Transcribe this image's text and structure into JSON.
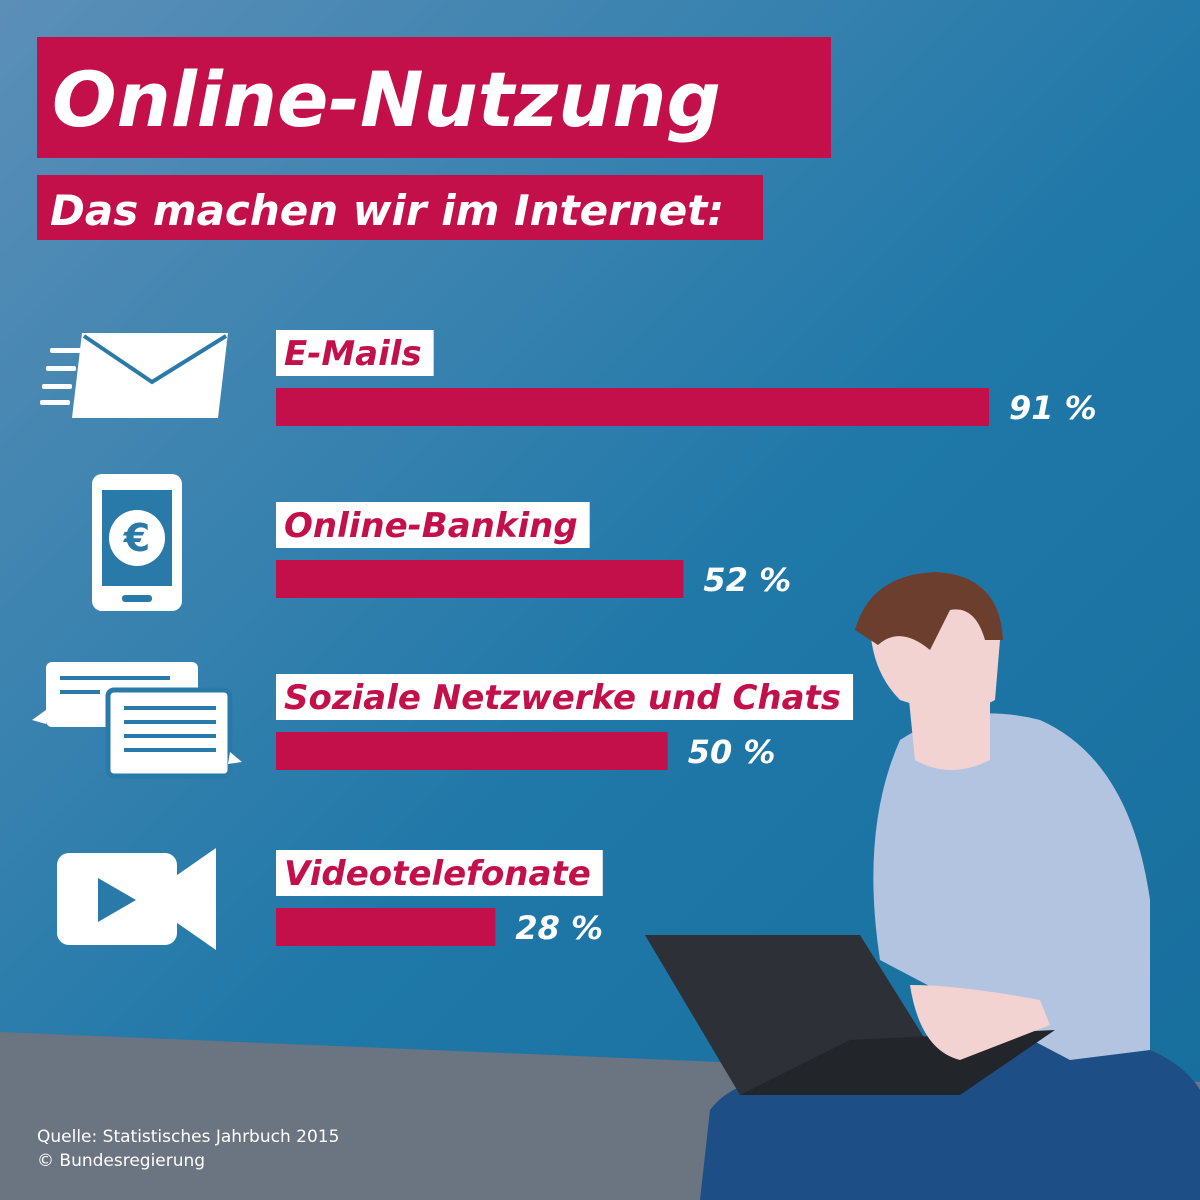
{
  "chart_data": {
    "type": "bar",
    "orientation": "horizontal",
    "title": "Online-Nutzung",
    "subtitle": "Das machen wir im Internet:",
    "categories": [
      "E-Mails",
      "Online-Banking",
      "Soziale Netzwerke und Chats",
      "Videotelefonate"
    ],
    "values": [
      91,
      52,
      50,
      28
    ],
    "value_labels": [
      "91 %",
      "52 %",
      "50 %",
      "28 %"
    ],
    "color": "#c4104a",
    "source": "Quelle: Statistisches Jahrbuch 2015",
    "copyright": "© Bundesregierung"
  }
}
